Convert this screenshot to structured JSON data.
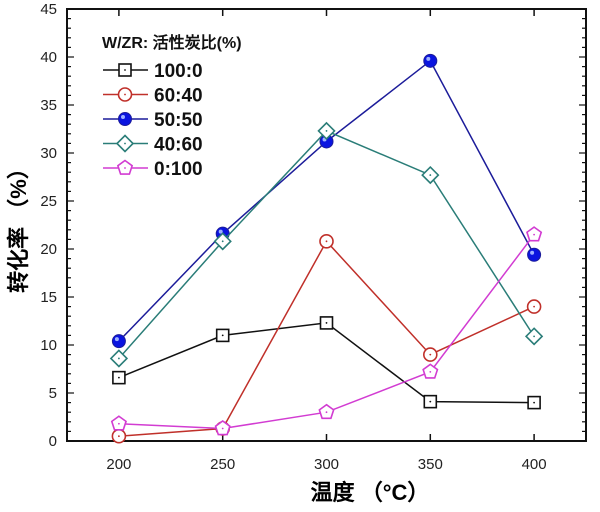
{
  "chart_data": {
    "type": "line",
    "xlabel": "温度 （°C）",
    "ylabel": "转化率 （%）",
    "xlim": [
      175,
      425
    ],
    "ylim": [
      0,
      45
    ],
    "x": [
      200,
      250,
      300,
      350,
      400
    ],
    "xticks": [
      200,
      250,
      300,
      350,
      400
    ],
    "yticks": [
      0,
      5,
      10,
      15,
      20,
      25,
      30,
      35,
      40,
      45
    ],
    "grid": false,
    "legend_title": "W/ZR: 活性炭比(%)",
    "legend_position": "top-left",
    "series": [
      {
        "name": "100:0",
        "values": [
          6.6,
          11.0,
          12.3,
          4.1,
          4.0
        ],
        "color": "#111111",
        "marker": "square-open"
      },
      {
        "name": "60:40",
        "values": [
          0.5,
          1.3,
          20.8,
          9.0,
          14.0
        ],
        "color": "#c0302a",
        "marker": "circle-open"
      },
      {
        "name": "50:50",
        "values": [
          10.4,
          21.6,
          31.2,
          39.6,
          19.4
        ],
        "color": "#1c1c9a",
        "marker": "circle-filled",
        "fill": "#0a14e0"
      },
      {
        "name": "40:60",
        "values": [
          8.6,
          20.8,
          32.3,
          27.7,
          10.9
        ],
        "color": "#2a7d78",
        "marker": "diamond-open"
      },
      {
        "name": "0:100",
        "values": [
          1.8,
          1.3,
          3.0,
          7.2,
          21.5
        ],
        "color": "#d23cd2",
        "marker": "pentagon-open"
      }
    ]
  }
}
